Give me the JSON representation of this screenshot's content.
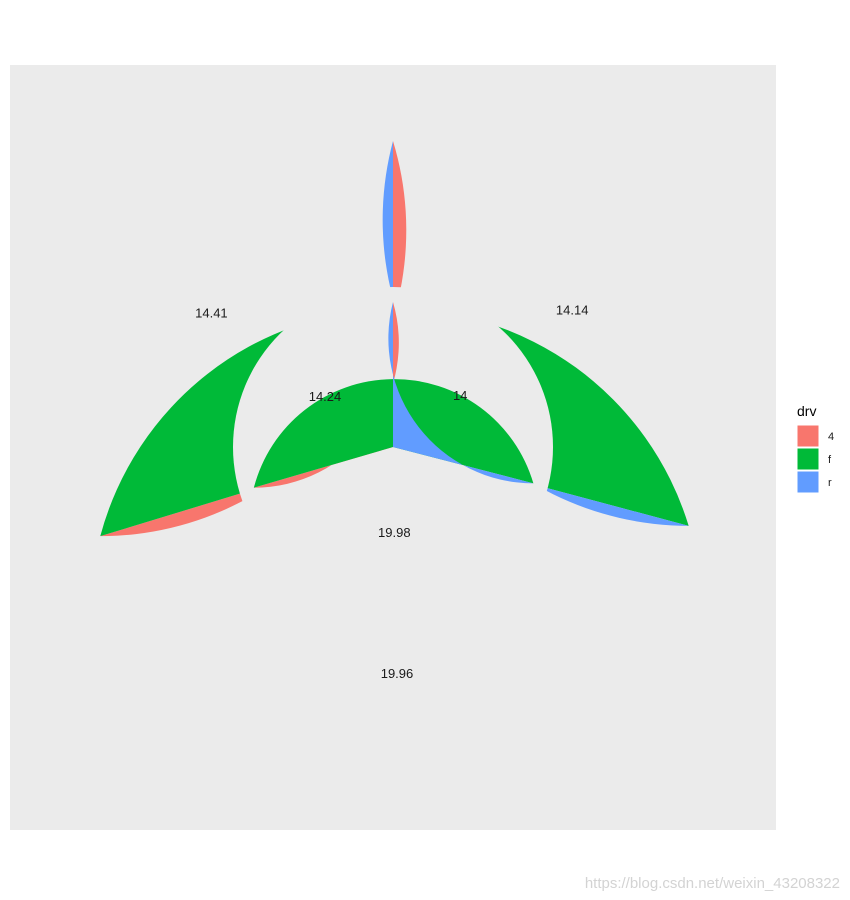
{
  "chart_data": {
    "type": "pie",
    "subtype": "nested-donut",
    "legend": {
      "title": "drv",
      "placement": "right",
      "entries": [
        "4",
        "f",
        "r"
      ]
    },
    "colors": {
      "4": "#F8766D",
      "f": "#00BA38",
      "r": "#619CFF",
      "panel_background": "#EBEBEB"
    },
    "categories": [
      "4",
      "f",
      "r"
    ],
    "series": [
      {
        "ring": "outer",
        "values": [
          14.41,
          19.96,
          14.14
        ],
        "labels": [
          "14.41",
          "19.96",
          "14.14"
        ]
      },
      {
        "ring": "inner",
        "values": [
          14.24,
          19.98,
          14
        ],
        "labels": [
          "14.24",
          "19.98",
          "14"
        ]
      }
    ]
  },
  "watermark": "https://blog.csdn.net/weixin_43208322"
}
